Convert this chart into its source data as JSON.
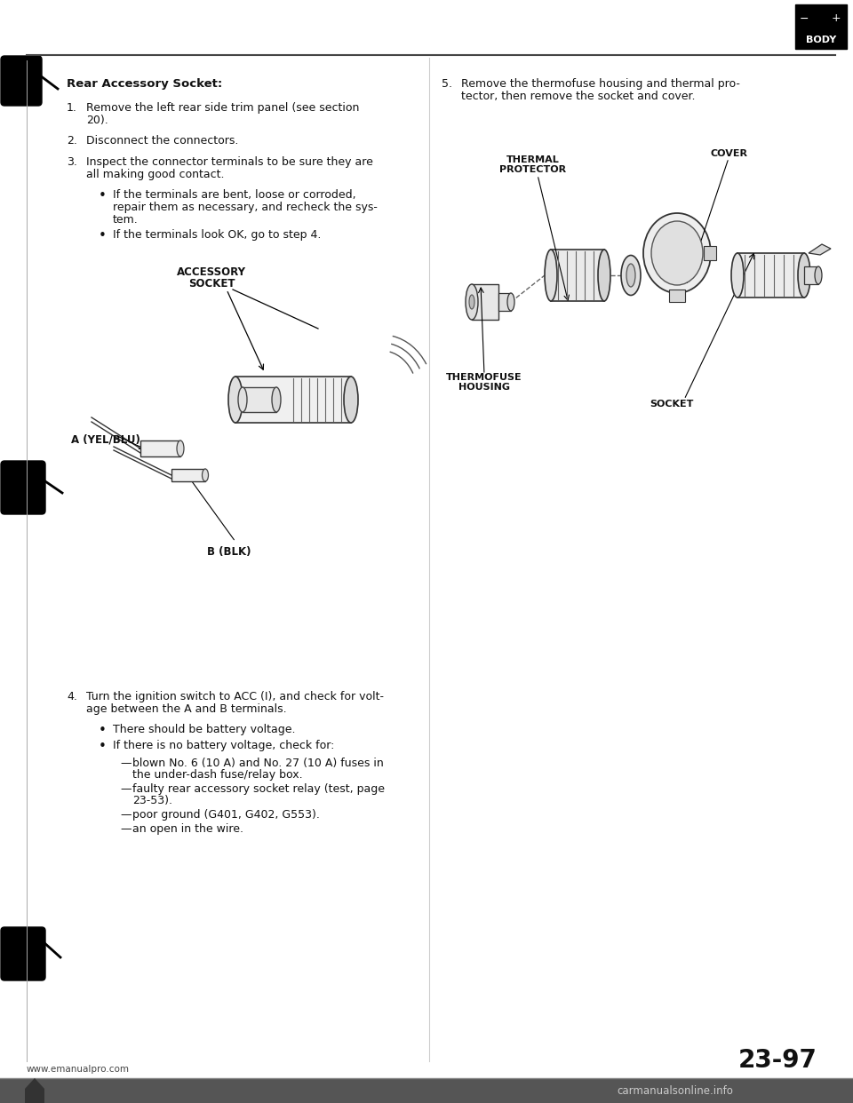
{
  "page_bg": "#ffffff",
  "text_color": "#111111",
  "title": "Rear Accessory Socket:",
  "step1_a": "Remove the left rear side trim panel (see section",
  "step1_b": "20).",
  "step2": "Disconnect the connectors.",
  "step3_a": "Inspect the connector terminals to be sure they are",
  "step3_b": "all making good contact.",
  "bullet1_a": "If the terminals are bent, loose or corroded,",
  "bullet1_b": "repair them as necessary, and recheck the sys-",
  "bullet1_c": "tem.",
  "bullet2": "If the terminals look OK, go to step 4.",
  "label_accessory_1": "ACCESSORY",
  "label_accessory_2": "SOCKET",
  "label_a": "A (YEL/BLU)",
  "label_b": "B (BLK)",
  "step4_a": "Turn the ignition switch to ACC (I), and check for volt-",
  "step4_b": "age between the A and B terminals.",
  "bullet3": "There should be battery voltage.",
  "bullet4": "If there is no battery voltage, check for:",
  "dash1_a": "blown No. 6 (10 A) and No. 27 (10 A) fuses in",
  "dash1_b": "the under-dash fuse/relay box.",
  "dash2_a": "faulty rear accessory socket relay (test, page",
  "dash2_b": "23-53).",
  "dash3": "poor ground (G401, G402, G553).",
  "dash4": "an open in the wire.",
  "step5_a": "Remove the thermofuse housing and thermal pro-",
  "step5_b": "tector, then remove the socket and cover.",
  "label_thermal_1": "THERMAL",
  "label_thermal_2": "PROTECTOR",
  "label_cover": "COVER",
  "label_thermofuse_1": "THERMOFUSE",
  "label_thermofuse_2": "HOUSING",
  "label_socket": "SOCKET",
  "page_num": "23-97",
  "website_left": "www.emanualpro.com",
  "website_right": "carmanualsonline.info",
  "body_label": "BODY"
}
